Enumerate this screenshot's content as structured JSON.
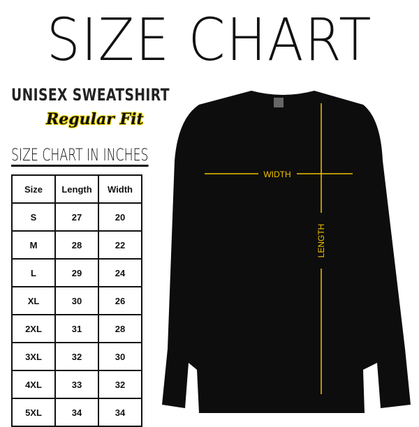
{
  "title": "SIZE CHART",
  "product": "UNISEX SWEATSHIRT",
  "fit": "Regular Fit",
  "chart_heading": "SIZE CHART IN INCHES",
  "table": {
    "headers": [
      "Size",
      "Length",
      "Width"
    ],
    "rows": [
      [
        "S",
        "27",
        "20"
      ],
      [
        "M",
        "28",
        "22"
      ],
      [
        "L",
        "29",
        "24"
      ],
      [
        "XL",
        "30",
        "26"
      ],
      [
        "2XL",
        "31",
        "28"
      ],
      [
        "3XL",
        "32",
        "30"
      ],
      [
        "4XL",
        "33",
        "32"
      ],
      [
        "5XL",
        "34",
        "34"
      ]
    ]
  },
  "measure": {
    "width_label": "WIDTH",
    "length_label": "LENGTH",
    "color": "#f2c200"
  },
  "garment_color": "#0d0d0d"
}
